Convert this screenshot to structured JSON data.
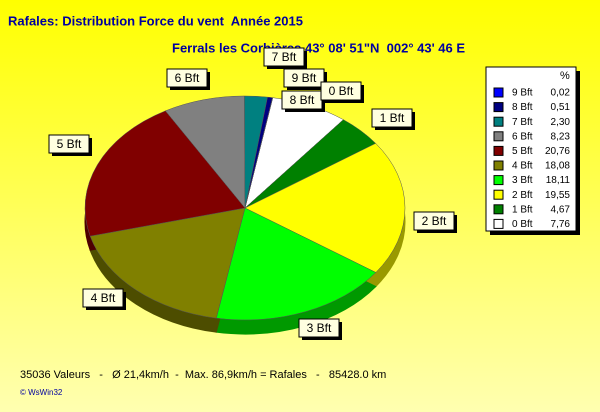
{
  "chart_data": {
    "type": "pie",
    "title": "Rafales: Distribution Force du vent  Année 2015",
    "subtitle": "Ferrals les Corbières 43° 08' 51\"N  002° 43' 46 E",
    "legend_header": "%",
    "categories": [
      "9 Bft",
      "8 Bft",
      "7 Bft",
      "6 Bft",
      "5 Bft",
      "4 Bft",
      "3 Bft",
      "2 Bft",
      "1 Bft",
      "0 Bft"
    ],
    "values": [
      0.02,
      0.51,
      2.3,
      8.23,
      20.76,
      18.08,
      18.11,
      19.55,
      4.67,
      7.76
    ],
    "value_labels": [
      "0,02",
      "0,51",
      "2,30",
      "8,23",
      "20,76",
      "18,08",
      "18,11",
      "19,55",
      "4,67",
      "7,76"
    ],
    "colors": [
      "#0000ff",
      "#000080",
      "#008080",
      "#808080",
      "#800000",
      "#808000",
      "#00ff00",
      "#ffff00",
      "#008000",
      "#ffffff"
    ],
    "footer": "35036 Valeurs   -   Ø 21,4km/h  -  Max. 86,9km/h = Rafales   -   85428.0 km",
    "credit": "© WsWin32"
  }
}
